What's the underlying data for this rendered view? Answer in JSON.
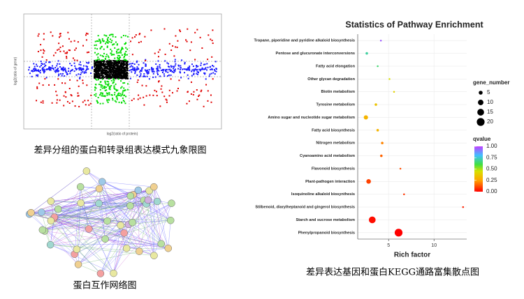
{
  "chart_data": {
    "type": "bubble",
    "title": "Statistics of Pathway Enrichment",
    "x_label": "Rich factor",
    "categories": [
      "Tropane, piperidine and pyridine alkaloid biosynthesis",
      "Pentose and glucuronate interconversions",
      "Fatty acid elongation",
      "Other glycan degradation",
      "Biotin metabolism",
      "Tyrosine metabolism",
      "Amino sugar and nucleotide sugar metabolism",
      "Fatty acid biosynthesis",
      "Nitrogen metabolism",
      "Cyanoamino acid metabolism",
      "Flavonoid biosynthesis",
      "Plant-pathogen interaction",
      "Isoquinoline alkaloid biosynthesis",
      "Stilbenoid, diarylheptanoid and gingerol biosynthesis",
      "Starch and sucrose metabolism",
      "Phenylpropanoid biosynthesis"
    ],
    "x": [
      4.15,
      2.6,
      3.8,
      5.1,
      5.6,
      3.6,
      2.5,
      3.8,
      4.3,
      4.2,
      6.3,
      2.8,
      6.7,
      13.2,
      3.2,
      6.1
    ],
    "qvalue": [
      0.95,
      0.7,
      0.65,
      0.45,
      0.4,
      0.35,
      0.3,
      0.3,
      0.2,
      0.15,
      0.12,
      0.1,
      0.08,
      0.05,
      0.02,
      0.0
    ],
    "gene_number": [
      1,
      2,
      1,
      1,
      1,
      2,
      6,
      2,
      2,
      2,
      1,
      7,
      1,
      1,
      15,
      20
    ],
    "xlim": [
      1.6,
      13.6
    ],
    "xticks": [
      5,
      10
    ],
    "size_legend_title": "gene_number",
    "size_legend": [
      5,
      10,
      15,
      20
    ],
    "color_legend_title": "qvalue",
    "color_ticks": [
      {
        "value": 1,
        "label": "1.00"
      },
      {
        "value": 0.75,
        "label": "0.75"
      },
      {
        "value": 0.5,
        "label": "0.50"
      },
      {
        "value": 0.25,
        "label": "0.25"
      },
      {
        "value": 0,
        "label": "0.00"
      }
    ],
    "color_scale": [
      [
        0,
        "#ff0000"
      ],
      [
        0.25,
        "#ffa500"
      ],
      [
        0.45,
        "#d8e000"
      ],
      [
        0.6,
        "#40e040"
      ],
      [
        0.8,
        "#40c0ff"
      ],
      [
        1,
        "#c040ff"
      ]
    ],
    "grid": true
  },
  "quadrant_plot": {
    "x_label": "log2(ratio of protein)",
    "y_label": "log2(ratio of gene)",
    "caption": "差异分组的蛋白和转录组表达模式九象限图"
  },
  "network": {
    "caption": "蛋白互作网络图"
  },
  "bubble_caption": "差异表达基因和蛋白KEGG通路富集散点图"
}
